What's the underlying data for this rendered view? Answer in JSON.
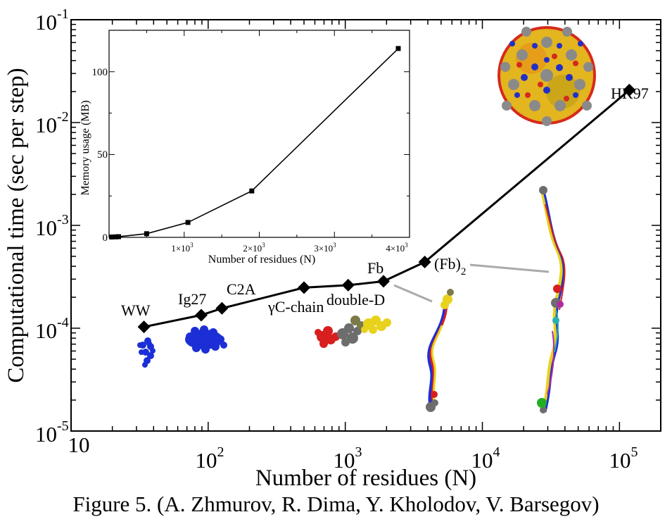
{
  "chart_data": [
    {
      "type": "line",
      "title": "",
      "xlabel": "Number of residues (N)",
      "ylabel": "Computational time (sec per step)",
      "xscale": "log",
      "yscale": "log",
      "xlim": [
        10,
        200000
      ],
      "ylim": [
        1e-05,
        0.1
      ],
      "x_ticks": [
        {
          "base": "10",
          "exp": ""
        },
        {
          "base": "10",
          "exp": "2"
        },
        {
          "base": "10",
          "exp": "3"
        },
        {
          "base": "10",
          "exp": "4"
        },
        {
          "base": "10",
          "exp": "5"
        }
      ],
      "y_ticks": [
        {
          "base": "10",
          "exp": "-5"
        },
        {
          "base": "10",
          "exp": "-4"
        },
        {
          "base": "10",
          "exp": "-3"
        },
        {
          "base": "10",
          "exp": "-2"
        },
        {
          "base": "10",
          "exp": "-1"
        }
      ],
      "series": [
        {
          "name": "Computational time",
          "marker": "diamond",
          "points": [
            {
              "label": "WW",
              "x": 34,
              "y": 0.000103
            },
            {
              "label": "Ig27",
              "x": 89,
              "y": 0.000134
            },
            {
              "label": "C2A",
              "x": 126,
              "y": 0.000156
            },
            {
              "label": "γC-chain",
              "x": 500,
              "y": 0.000248
            },
            {
              "label": "double-D",
              "x": 1050,
              "y": 0.000262
            },
            {
              "label": "Fb",
              "x": 1900,
              "y": 0.000286
            },
            {
              "label": "(Fb)",
              "label_sub": "2",
              "x": 3800,
              "y": 0.00044
            },
            {
              "label": "HK97",
              "x": 118000,
              "y": 0.0207
            }
          ]
        }
      ]
    },
    {
      "type": "line",
      "title": "",
      "xlabel": "Number of residues (N)",
      "ylabel": "Memory usage (MB)",
      "xlim": [
        0,
        4000
      ],
      "ylim": [
        0,
        125
      ],
      "x_ticks": [
        {
          "value": 1000,
          "label": "1×10",
          "exp": "3"
        },
        {
          "value": 2000,
          "label": "2×10",
          "exp": "3"
        },
        {
          "value": 3000,
          "label": "3×10",
          "exp": "3"
        },
        {
          "value": 4000,
          "label": "4×10",
          "exp": "3"
        }
      ],
      "y_ticks": [
        {
          "value": 0,
          "label": "0"
        },
        {
          "value": 50,
          "label": "50"
        },
        {
          "value": 100,
          "label": "100"
        }
      ],
      "series": [
        {
          "name": "Memory usage",
          "marker": "square",
          "x": [
            34,
            89,
            126,
            500,
            1050,
            1900,
            3850
          ],
          "y": [
            0.2,
            0.3,
            0.4,
            2.2,
            9.0,
            28.0,
            114.0
          ]
        }
      ]
    }
  ],
  "caption": "Figure 5. (A. Zhmurov, R. Dima, Y. Kholodov, V. Barsegov)",
  "structure_colors": {
    "ww": "#1c2fd6",
    "ig27": "#1c2fd6",
    "red": "#d81e1e",
    "gray": "#6d6d6d",
    "yellow": "#e8d21c",
    "orange": "#e08a10",
    "green": "#22b022",
    "magenta": "#b02aa0",
    "cyan": "#2ab0b0"
  }
}
